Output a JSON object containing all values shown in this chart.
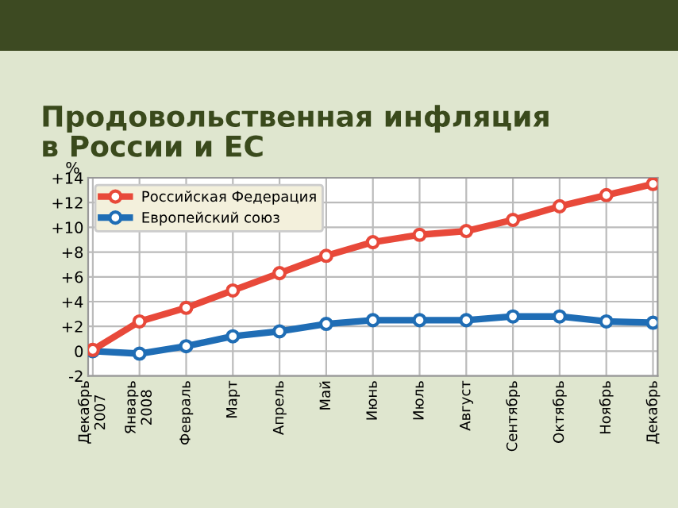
{
  "chart_data": {
    "type": "line",
    "title": "Продовольственная инфляция\nв России и ЕС",
    "ylabel": "%",
    "categories": [
      "Декабрь\n2007",
      "Январь\n2008",
      "Февраль",
      "Март",
      "Апрель",
      "Май",
      "Июнь",
      "Июль",
      "Август",
      "Сентябрь",
      "Октябрь",
      "Ноябрь",
      "Декабрь"
    ],
    "series": [
      {
        "name": "Российская Федерация",
        "color": "#e8493a",
        "values": [
          0.1,
          2.4,
          3.5,
          4.9,
          6.3,
          7.7,
          8.8,
          9.4,
          9.7,
          10.6,
          11.7,
          12.6,
          13.5
        ]
      },
      {
        "name": "Европейский союз",
        "color": "#1f6db5",
        "values": [
          0,
          -0.2,
          0.4,
          1.2,
          1.6,
          2.2,
          2.5,
          2.5,
          2.5,
          2.8,
          2.8,
          2.4,
          2.3
        ]
      }
    ],
    "ylim": [
      -2,
      14
    ],
    "yticks": [
      {
        "value": -2,
        "label": "-2"
      },
      {
        "value": 0,
        "label": "0"
      },
      {
        "value": 2,
        "label": "+2"
      },
      {
        "value": 4,
        "label": "+4"
      },
      {
        "value": 6,
        "label": "+6"
      },
      {
        "value": 8,
        "label": "+8"
      },
      {
        "value": 10,
        "label": "+10"
      },
      {
        "value": 12,
        "label": "+12"
      },
      {
        "value": 14,
        "label": "+14"
      }
    ],
    "grid": true,
    "legend": "top left",
    "marker": "circle",
    "line_style": "solid"
  }
}
